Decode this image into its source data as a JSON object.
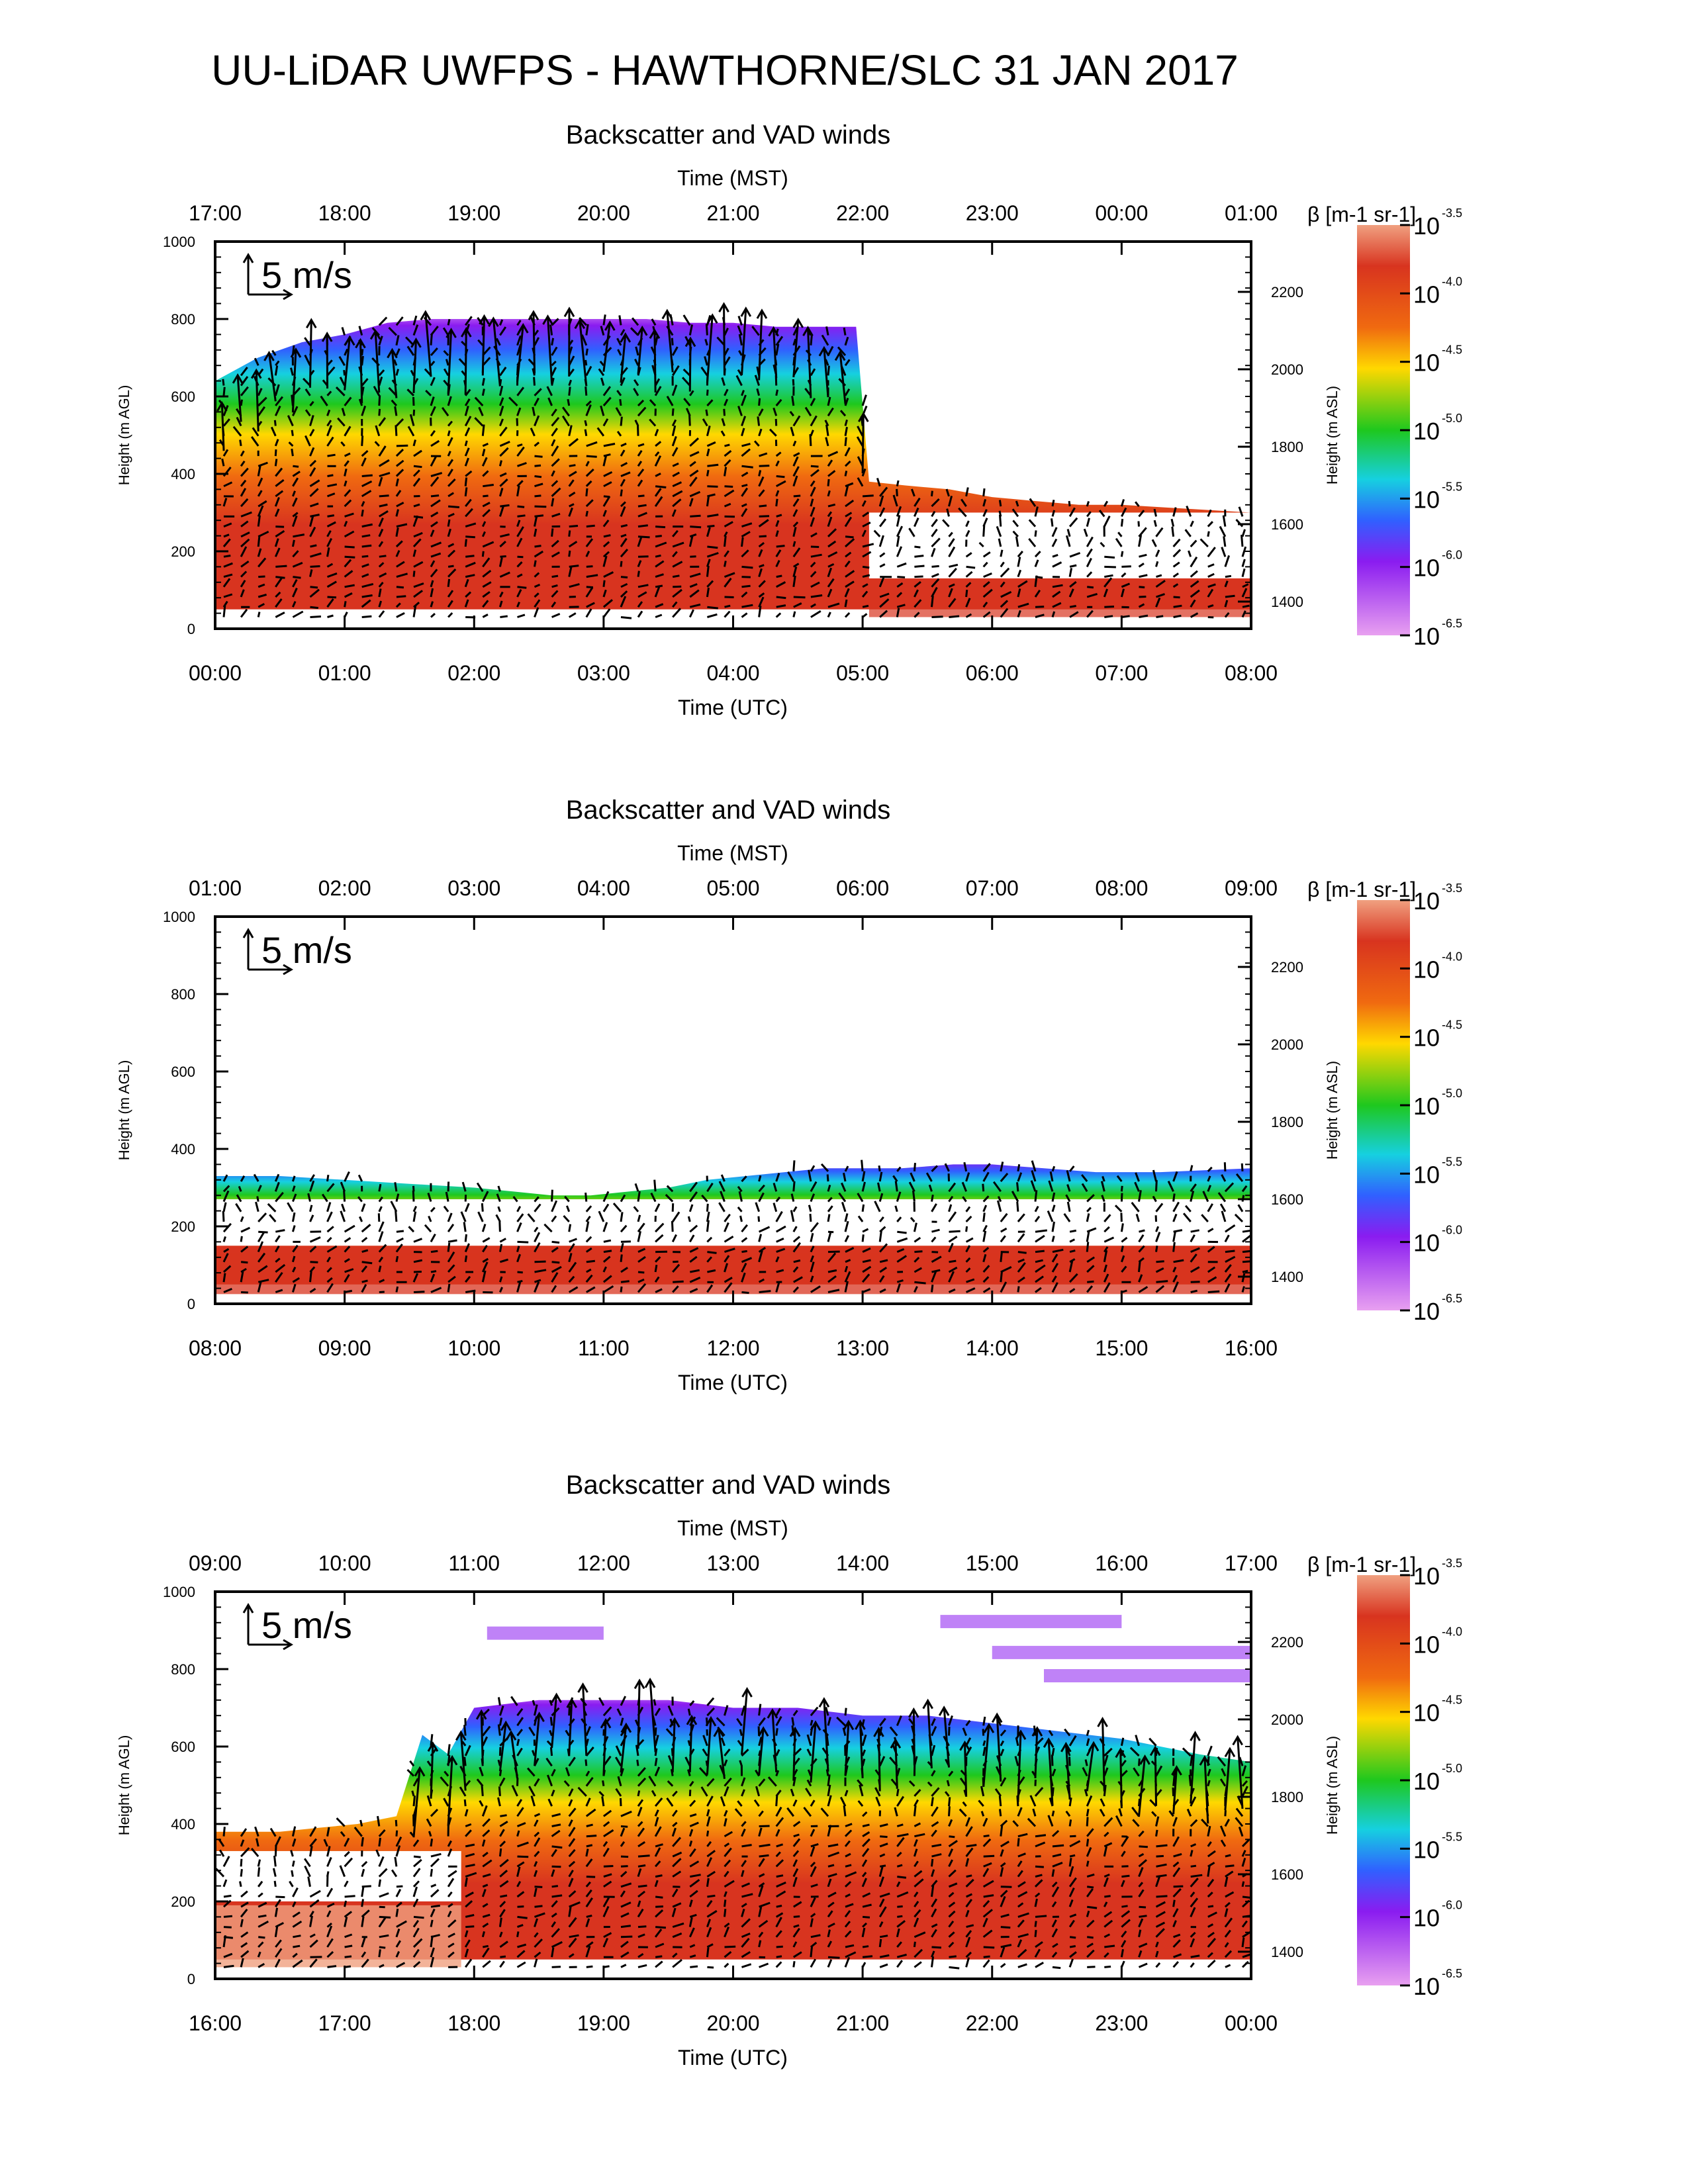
{
  "title": "UU-LiDAR UWFPS - HAWTHORNE/SLC 31 JAN 2017",
  "chart_data": [
    {
      "type": "heatmap",
      "title": "Backscatter and VAD winds",
      "xlabel_top": "Time (MST)",
      "xticks_top": [
        "17:00",
        "18:00",
        "19:00",
        "20:00",
        "21:00",
        "22:00",
        "23:00",
        "00:00",
        "01:00"
      ],
      "xlabel": "Time (UTC)",
      "xticks": [
        "00:00",
        "01:00",
        "02:00",
        "03:00",
        "04:00",
        "05:00",
        "06:00",
        "07:00",
        "08:00"
      ],
      "ylabel": "Height (m AGL)",
      "yticks": [
        "0",
        "200",
        "400",
        "600",
        "800",
        "1000"
      ],
      "ylim": [
        0,
        1000
      ],
      "ylabel_right": "Height (m ASL)",
      "yticks_right": [
        "1400",
        "1600",
        "1800",
        "2000",
        "2200"
      ],
      "wind_scale_label": "5 m/s",
      "colorbar_label": "β [m-1 sr-1]",
      "colorbar_ticks": [
        "-3.5",
        "-4.0",
        "-4.5",
        "-5.0",
        "-5.5",
        "-6.0",
        "-6.5"
      ],
      "layer_top_m_agl": [
        640,
        700,
        740,
        760,
        790,
        800,
        800,
        800,
        800,
        800,
        800,
        790,
        790,
        780,
        780,
        780,
        380,
        370,
        360,
        340,
        330,
        320,
        320,
        310,
        300
      ],
      "layer_time_hours": [
        0,
        0.33,
        0.67,
        1,
        1.33,
        1.67,
        2,
        2.33,
        2.67,
        3,
        3.33,
        3.67,
        4,
        4.33,
        4.67,
        4.95,
        5.05,
        5.33,
        5.67,
        6,
        6.33,
        6.67,
        7,
        7.5,
        8
      ]
    },
    {
      "type": "heatmap",
      "title": "Backscatter and VAD winds",
      "xlabel_top": "Time (MST)",
      "xticks_top": [
        "01:00",
        "02:00",
        "03:00",
        "04:00",
        "05:00",
        "06:00",
        "07:00",
        "08:00",
        "09:00"
      ],
      "xlabel": "Time (UTC)",
      "xticks": [
        "08:00",
        "09:00",
        "10:00",
        "11:00",
        "12:00",
        "13:00",
        "14:00",
        "15:00",
        "16:00"
      ],
      "ylabel": "Height (m AGL)",
      "yticks": [
        "0",
        "200",
        "400",
        "600",
        "800",
        "1000"
      ],
      "ylim": [
        0,
        1000
      ],
      "ylabel_right": "Height (m ASL)",
      "yticks_right": [
        "1400",
        "1600",
        "1800",
        "2000",
        "2200"
      ],
      "wind_scale_label": "5 m/s",
      "colorbar_label": "β [m-1 sr-1]",
      "colorbar_ticks": [
        "-3.5",
        "-4.0",
        "-4.5",
        "-5.0",
        "-5.5",
        "-6.0",
        "-6.5"
      ],
      "layer_top_m_agl": [
        330,
        330,
        320,
        310,
        300,
        290,
        280,
        280,
        290,
        300,
        320,
        330,
        340,
        350,
        350,
        350,
        360,
        360,
        350,
        340,
        340,
        350
      ],
      "layer_time_hours": [
        8,
        8.5,
        9,
        9.5,
        10,
        10.3,
        10.6,
        10.9,
        11.2,
        11.5,
        11.8,
        12.1,
        12.4,
        12.7,
        13,
        13.3,
        13.7,
        14,
        14.4,
        14.8,
        15.3,
        16
      ]
    },
    {
      "type": "heatmap",
      "title": "Backscatter and VAD winds",
      "xlabel_top": "Time (MST)",
      "xticks_top": [
        "09:00",
        "10:00",
        "11:00",
        "12:00",
        "13:00",
        "14:00",
        "15:00",
        "16:00",
        "17:00"
      ],
      "xlabel": "Time (UTC)",
      "xticks": [
        "16:00",
        "17:00",
        "18:00",
        "19:00",
        "20:00",
        "21:00",
        "22:00",
        "23:00",
        "00:00"
      ],
      "ylabel": "Height (m AGL)",
      "yticks": [
        "0",
        "200",
        "400",
        "600",
        "800",
        "1000"
      ],
      "ylim": [
        0,
        1000
      ],
      "ylabel_right": "Height (m ASL)",
      "yticks_right": [
        "1400",
        "1600",
        "1800",
        "2000",
        "2200"
      ],
      "wind_scale_label": "5 m/s",
      "colorbar_label": "β [m-1 sr-1]",
      "colorbar_ticks": [
        "-3.5",
        "-4.0",
        "-4.5",
        "-5.0",
        "-5.5",
        "-6.0",
        "-6.5"
      ],
      "layer_top_m_agl": [
        380,
        380,
        390,
        400,
        420,
        630,
        580,
        700,
        720,
        720,
        720,
        700,
        700,
        680,
        680,
        660,
        640,
        620,
        600,
        580,
        560
      ],
      "layer_time_hours": [
        16,
        16.5,
        16.8,
        17.1,
        17.4,
        17.6,
        17.8,
        18,
        18.5,
        19,
        19.5,
        20,
        20.5,
        21,
        21.5,
        22,
        22.5,
        23,
        23.3,
        23.6,
        24
      ]
    }
  ],
  "colors": {
    "red": "#d8341f",
    "orange": "#f06a10",
    "yellow": "#ffd800",
    "green": "#1ec81e",
    "cyan": "#16d0e0",
    "blue": "#3060ff",
    "violet": "#8a1cf0",
    "pink": "#e8a0f0",
    "salmon": "#f0a080"
  }
}
